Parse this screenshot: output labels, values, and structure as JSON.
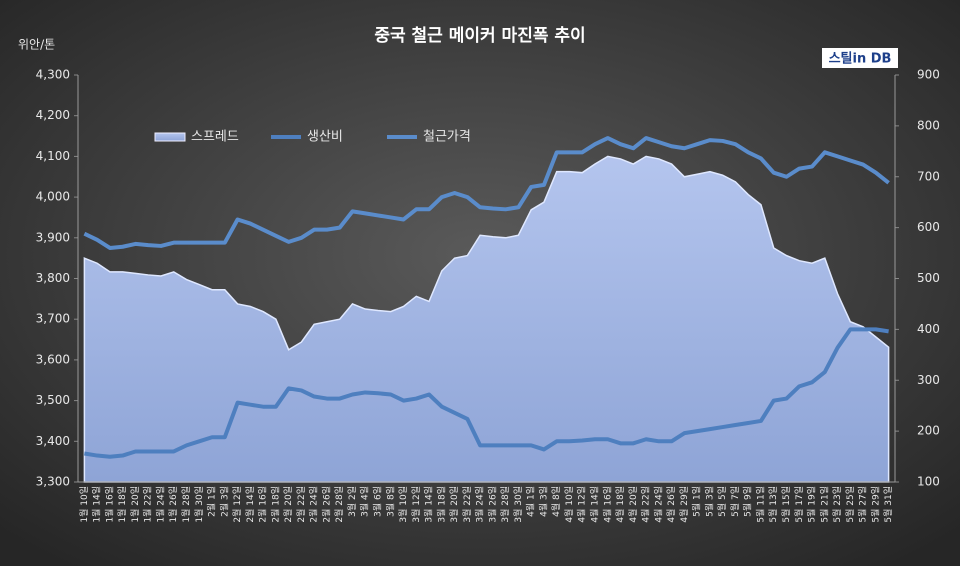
{
  "chart_data": {
    "type": "line",
    "title": "중국 철근 메이커 마진폭 추이",
    "y_label": "위안/톤",
    "logo": "스틸in DB",
    "categories": [
      "1월 10일",
      "1월 14일",
      "1월 16일",
      "1월 18일",
      "1월 20일",
      "1월 22일",
      "1월 24일",
      "1월 26일",
      "1월 28일",
      "1월 30일",
      "2월 1일",
      "2월 3일",
      "2월 12일",
      "2월 14일",
      "2월 16일",
      "2월 18일",
      "2월 20일",
      "2월 22일",
      "2월 24일",
      "2월 26일",
      "2월 28일",
      "3월 2일",
      "3월 4일",
      "3월 6일",
      "3월 8일",
      "3월 10일",
      "3월 12일",
      "3월 14일",
      "3월 18일",
      "3월 20일",
      "3월 22일",
      "3월 24일",
      "3월 26일",
      "3월 28일",
      "3월 30일",
      "4월 1일",
      "4월 3일",
      "4월 8일",
      "4월 10일",
      "4월 12일",
      "4월 14일",
      "4월 16일",
      "4월 18일",
      "4월 20일",
      "4월 22일",
      "4월 24일",
      "4월 26일",
      "4월 29일",
      "5월 1일",
      "5월 3일",
      "5월 5일",
      "5월 7일",
      "5월 9일",
      "5월 11일",
      "5월 13일",
      "5월 15일",
      "5월 17일",
      "5월 19일",
      "5월 21일",
      "5월 23일",
      "5월 25일",
      "5월 27일",
      "5월 29일",
      "5월 31일"
    ],
    "series": [
      {
        "name": "스프레드",
        "type": "area",
        "axis": "y2",
        "color": "#b4c5ee",
        "values": [
          540,
          530,
          513,
          513,
          510,
          507,
          505,
          513,
          498,
          488,
          478,
          478,
          450,
          445,
          435,
          420,
          360,
          375,
          410,
          415,
          420,
          450,
          440,
          437,
          435,
          445,
          465,
          455,
          515,
          540,
          545,
          585,
          582,
          580,
          585,
          635,
          650,
          710,
          710,
          708,
          725,
          740,
          735,
          725,
          740,
          735,
          725,
          700,
          705,
          710,
          703,
          690,
          665,
          645,
          560,
          545,
          535,
          530,
          540,
          470,
          415,
          405,
          385,
          365
        ]
      },
      {
        "name": "생산비",
        "type": "line",
        "axis": "y",
        "color": "#4e7fbf",
        "values": [
          3370,
          3365,
          3362,
          3365,
          3375,
          3375,
          3375,
          3375,
          3390,
          3400,
          3410,
          3410,
          3495,
          3490,
          3485,
          3485,
          3530,
          3525,
          3510,
          3505,
          3505,
          3515,
          3520,
          3518,
          3515,
          3500,
          3505,
          3515,
          3485,
          3470,
          3455,
          3390,
          3390,
          3390,
          3390,
          3390,
          3380,
          3400,
          3400,
          3402,
          3405,
          3405,
          3395,
          3395,
          3405,
          3400,
          3400,
          3420,
          3425,
          3430,
          3435,
          3440,
          3445,
          3450,
          3500,
          3505,
          3535,
          3545,
          3570,
          3630,
          3675,
          3675,
          3675,
          3670
        ]
      },
      {
        "name": "철근가격",
        "type": "line",
        "axis": "y",
        "color": "#5a8ccb",
        "values": [
          3910,
          3895,
          3875,
          3878,
          3885,
          3882,
          3880,
          3888,
          3888,
          3888,
          3888,
          3888,
          3945,
          3935,
          3920,
          3905,
          3890,
          3900,
          3920,
          3920,
          3925,
          3965,
          3960,
          3955,
          3950,
          3945,
          3970,
          3970,
          4000,
          4010,
          4000,
          3975,
          3972,
          3970,
          3975,
          4025,
          4030,
          4110,
          4110,
          4110,
          4130,
          4145,
          4130,
          4120,
          4145,
          4135,
          4125,
          4120,
          4130,
          4140,
          4138,
          4130,
          4110,
          4095,
          4060,
          4050,
          4070,
          4075,
          4110,
          4100,
          4090,
          4080,
          4060,
          4035
        ]
      }
    ],
    "ylim": [
      3300,
      4300
    ],
    "yticks": [
      {
        "value": 3300,
        "label": "3,300"
      },
      {
        "value": 3400,
        "label": "3,400"
      },
      {
        "value": 3500,
        "label": "3,500"
      },
      {
        "value": 3600,
        "label": "3,600"
      },
      {
        "value": 3700,
        "label": "3,700"
      },
      {
        "value": 3800,
        "label": "3,800"
      },
      {
        "value": 3900,
        "label": "3,900"
      },
      {
        "value": 4000,
        "label": "4,000"
      },
      {
        "value": 4100,
        "label": "4,100"
      },
      {
        "value": 4200,
        "label": "4,200"
      },
      {
        "value": 4300,
        "label": "4,300"
      }
    ],
    "y2lim": [
      100,
      900
    ],
    "y2ticks": [
      100,
      200,
      300,
      400,
      500,
      600,
      700,
      800,
      900
    ]
  }
}
